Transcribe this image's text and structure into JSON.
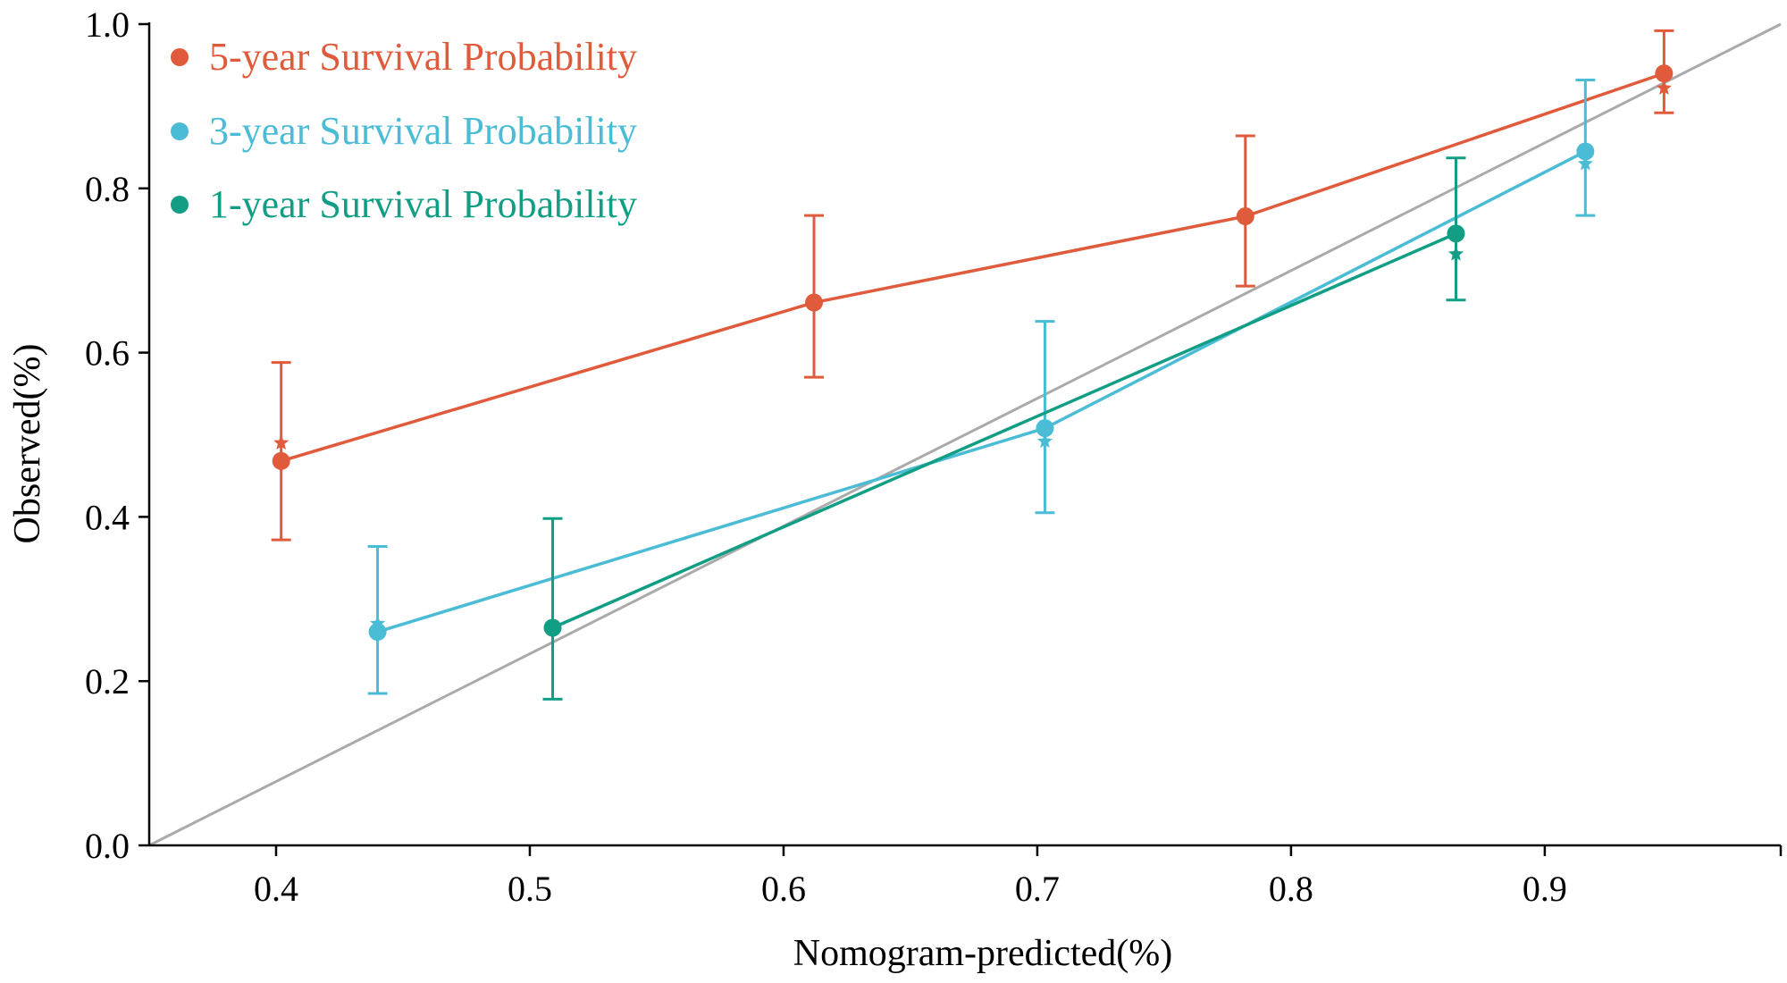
{
  "chart_data": {
    "type": "line",
    "title": "",
    "xlabel": "Nomogram-predicted(%)",
    "ylabel": "Observed(%)",
    "xlim": [
      0.35,
      0.993
    ],
    "ylim": [
      0.0,
      1.0
    ],
    "x_ticks": [
      0.4,
      0.5,
      0.6,
      0.7,
      0.8,
      0.9
    ],
    "x_tick_labels": [
      "0.4",
      "0.5",
      "0.6",
      "0.7",
      "0.8",
      "0.9"
    ],
    "y_ticks": [
      0.0,
      0.2,
      0.4,
      0.6,
      0.8,
      1.0
    ],
    "y_tick_labels": [
      "0.0",
      "0.2",
      "0.4",
      "0.6",
      "0.8",
      "1.0"
    ],
    "grid": false,
    "legend_position": "top-left",
    "reference_line": {
      "name": "ideal",
      "color": "#aaaaaa",
      "from": [
        0.35,
        0.0
      ],
      "to": [
        0.993,
        1.0
      ]
    },
    "series": [
      {
        "name": "5-year Survival Probability",
        "color": "#e05a3c",
        "points": [
          {
            "x": 0.402,
            "y": 0.468,
            "lo": 0.372,
            "hi": 0.588,
            "star": 0.49
          },
          {
            "x": 0.612,
            "y": 0.661,
            "lo": 0.57,
            "hi": 0.767,
            "star": 0.661
          },
          {
            "x": 0.782,
            "y": 0.766,
            "lo": 0.681,
            "hi": 0.864,
            "star": 0.766
          },
          {
            "x": 0.947,
            "y": 0.94,
            "lo": 0.892,
            "hi": 0.992,
            "star": 0.922
          }
        ]
      },
      {
        "name": "3-year Survival Probability",
        "color": "#4bbcd6",
        "points": [
          {
            "x": 0.44,
            "y": 0.26,
            "lo": 0.185,
            "hi": 0.364,
            "star": 0.27
          },
          {
            "x": 0.703,
            "y": 0.508,
            "lo": 0.405,
            "hi": 0.638,
            "star": 0.492
          },
          {
            "x": 0.916,
            "y": 0.845,
            "lo": 0.767,
            "hi": 0.932,
            "star": 0.83
          }
        ]
      },
      {
        "name": "1-year Survival Probability",
        "color": "#129e84",
        "points": [
          {
            "x": 0.509,
            "y": 0.265,
            "lo": 0.178,
            "hi": 0.398,
            "star": 0.265
          },
          {
            "x": 0.865,
            "y": 0.745,
            "lo": 0.664,
            "hi": 0.837,
            "star": 0.72
          }
        ]
      }
    ]
  }
}
